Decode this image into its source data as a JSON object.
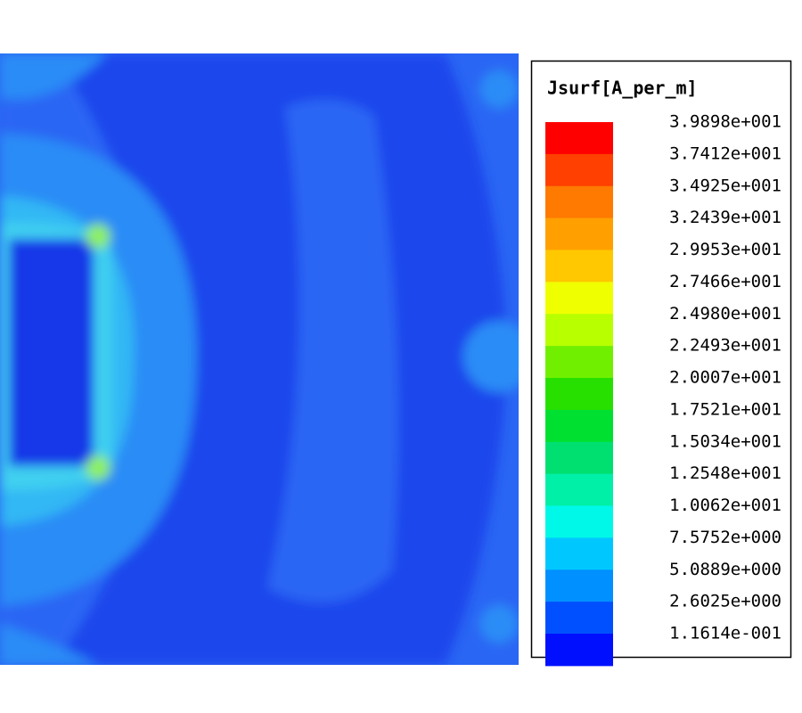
{
  "legend": {
    "title": "Jsurf[A_per_m]",
    "labels": [
      "3.9898e+001",
      "3.7412e+001",
      "3.4925e+001",
      "3.2439e+001",
      "2.9953e+001",
      "2.7466e+001",
      "2.4980e+001",
      "2.2493e+001",
      "2.0007e+001",
      "1.7521e+001",
      "1.5034e+001",
      "1.2548e+001",
      "1.0062e+001",
      "7.5752e+000",
      "5.0889e+000",
      "2.6025e+000",
      "1.1614e-001"
    ],
    "colors": [
      "#ff0000",
      "#ff4000",
      "#ff7a00",
      "#ffa000",
      "#ffc800",
      "#f0ff00",
      "#b8ff00",
      "#70f000",
      "#28e000",
      "#00e030",
      "#00e070",
      "#00f0a8",
      "#00f8e8",
      "#00c8ff",
      "#0090ff",
      "#0050ff",
      "#0010ff"
    ]
  }
}
